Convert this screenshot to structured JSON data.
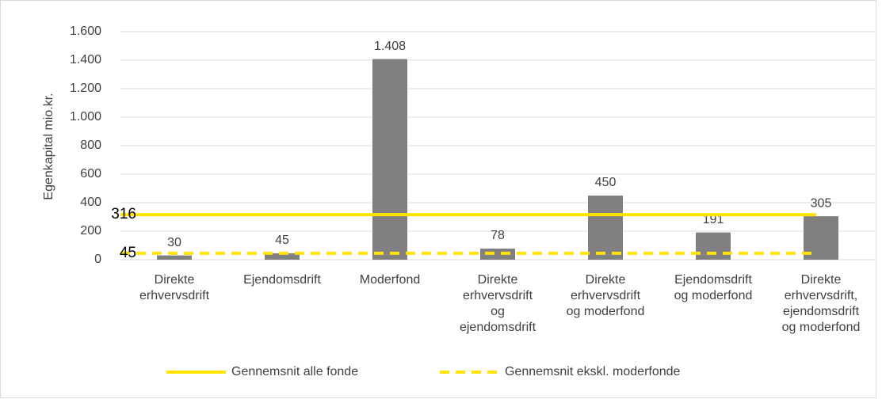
{
  "chart_data": {
    "type": "bar",
    "y_label": "Egenkapital mio.kr.",
    "categories": [
      [
        "Direkte",
        "erhvervsdrift"
      ],
      [
        "Ejendomsdrift"
      ],
      [
        "Moderfond"
      ],
      [
        "Direkte",
        "erhvervsdrift",
        "og",
        "ejendomsdrift"
      ],
      [
        "Direkte",
        "erhvervsdrift",
        "og moderfond"
      ],
      [
        "Ejendomsdrift",
        "og moderfond"
      ],
      [
        "Direkte",
        "erhvervsdrift,",
        "ejendomsdrift",
        "og moderfond"
      ]
    ],
    "values": [
      30,
      45,
      1408,
      78,
      450,
      191,
      305
    ],
    "value_labels": [
      "30",
      "45",
      "1.408",
      "78",
      "450",
      "191",
      "305"
    ],
    "color": "#808080",
    "ylim": [
      0,
      1600
    ],
    "yticks": [
      0,
      200,
      400,
      600,
      800,
      {
        "value": 1000,
        "label": "1.000"
      },
      {
        "value": 1200,
        "label": "1.200"
      },
      {
        "value": 1400,
        "label": "1.400"
      },
      {
        "value": 1600,
        "label": "1.600"
      }
    ],
    "grid": true,
    "lines": [
      {
        "name": "Gennemsnit alle fonde",
        "value": 316,
        "color": "#ffe500",
        "dashed": false
      },
      {
        "name": "Gennemsnit ekskl. moderfonde",
        "value": 45,
        "color": "#ffe500",
        "dashed": true
      }
    ],
    "legend": "bottom"
  }
}
